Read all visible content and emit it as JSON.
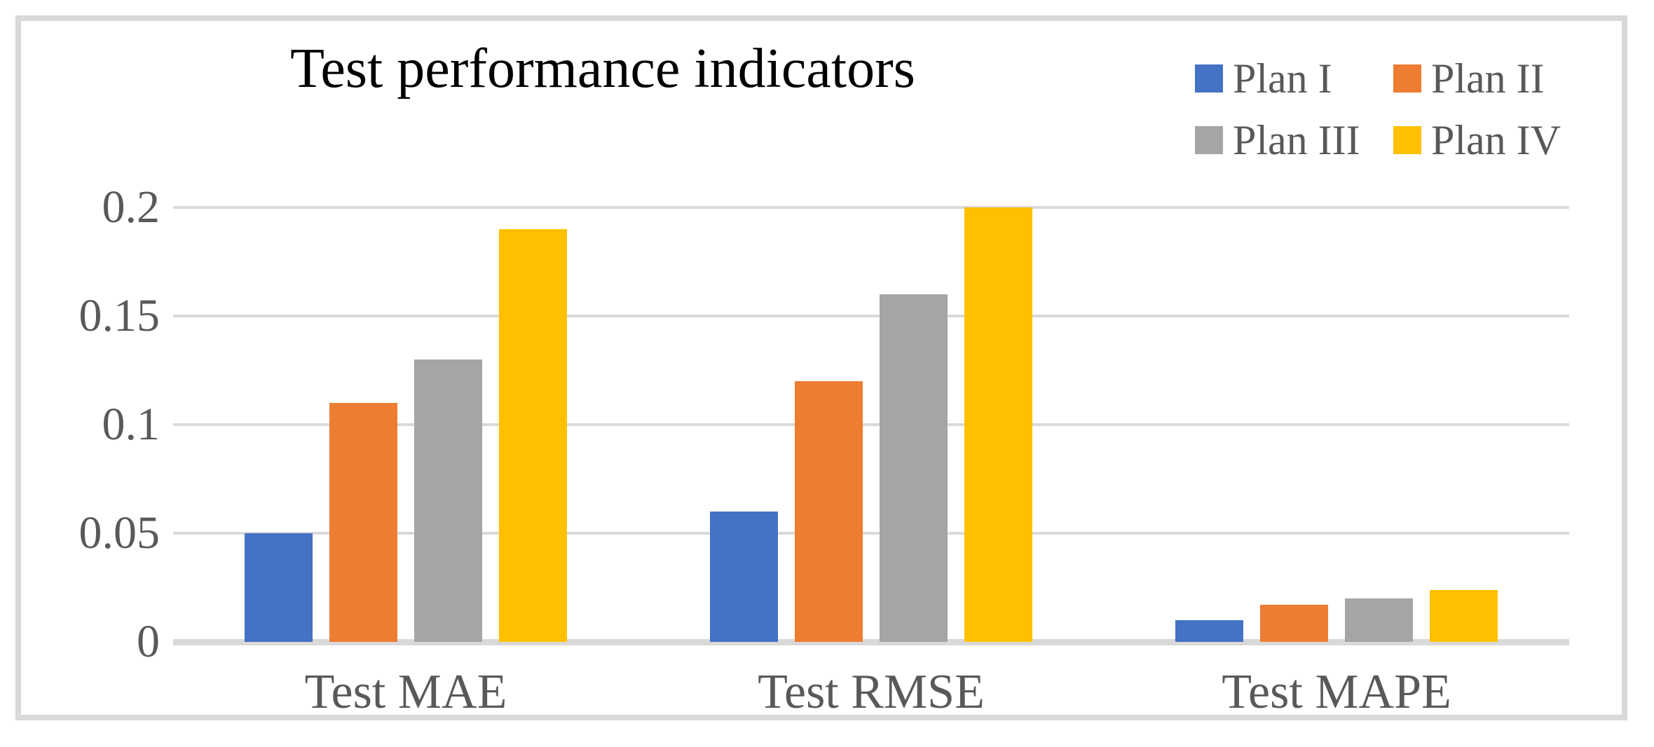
{
  "chart_data": {
    "type": "bar",
    "title": "Test performance indicators",
    "categories": [
      "Test MAE",
      "Test RMSE",
      "Test MAPE"
    ],
    "series": [
      {
        "name": "Plan I",
        "color": "#4472C4",
        "values": [
          0.05,
          0.06,
          0.01
        ]
      },
      {
        "name": "Plan II",
        "color": "#ED7D31",
        "values": [
          0.11,
          0.12,
          0.017
        ]
      },
      {
        "name": "Plan III",
        "color": "#A5A5A5",
        "values": [
          0.13,
          0.16,
          0.02
        ]
      },
      {
        "name": "Plan IV",
        "color": "#FFC000",
        "values": [
          0.19,
          0.2,
          0.024
        ]
      }
    ],
    "xlabel": "",
    "ylabel": "",
    "ylim": [
      0,
      0.2
    ],
    "yticks": [
      0,
      0.05,
      0.1,
      0.15,
      0.2
    ],
    "ytick_labels": [
      "0",
      "0.05",
      "0.1",
      "0.15",
      "0.2"
    ],
    "grid": true,
    "legend_position": "top-right",
    "legend_layout": "2x2"
  },
  "colors": {
    "background": "#FFFFFF",
    "frame_border": "#D9D9D9",
    "gridline": "#D9D9D9",
    "axis_line": "#D9D9D9",
    "title_text": "#000000",
    "axis_text": "#595959",
    "legend_text": "#595959"
  }
}
